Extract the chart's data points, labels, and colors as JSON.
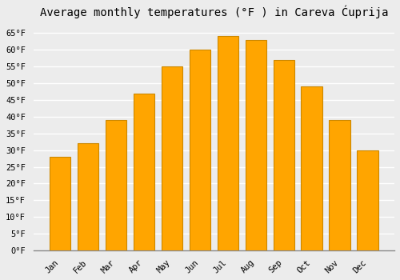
{
  "title": "Average monthly temperatures (°F ) in Careva Ćuprija",
  "months": [
    "Jan",
    "Feb",
    "Mar",
    "Apr",
    "May",
    "Jun",
    "Jul",
    "Aug",
    "Sep",
    "Oct",
    "Nov",
    "Dec"
  ],
  "values": [
    28,
    32,
    39,
    47,
    55,
    60,
    64,
    63,
    57,
    49,
    39,
    30
  ],
  "bar_color": "#FFA500",
  "bar_edge_color": "#CC8800",
  "background_color": "#ECECEC",
  "grid_color": "#FFFFFF",
  "ytick_labels": [
    "0°F",
    "5°F",
    "10°F",
    "15°F",
    "20°F",
    "25°F",
    "30°F",
    "35°F",
    "40°F",
    "45°F",
    "50°F",
    "55°F",
    "60°F",
    "65°F"
  ],
  "ytick_values": [
    0,
    5,
    10,
    15,
    20,
    25,
    30,
    35,
    40,
    45,
    50,
    55,
    60,
    65
  ],
  "ylim": [
    0,
    68
  ],
  "title_fontsize": 10,
  "tick_fontsize": 7.5,
  "font_family": "monospace"
}
